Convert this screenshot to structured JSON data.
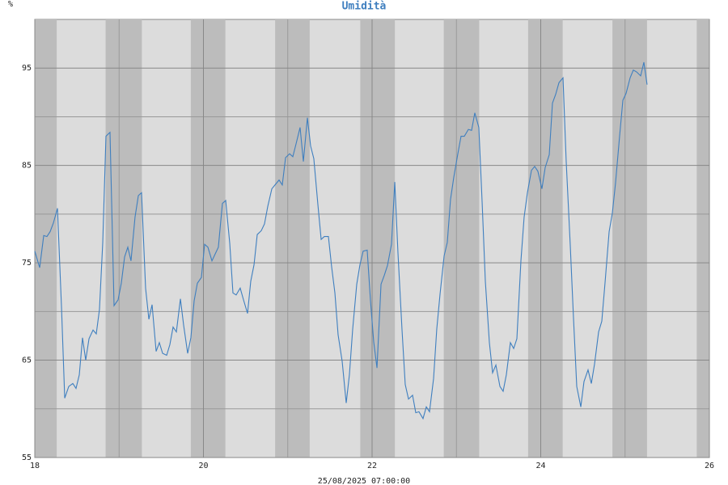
{
  "chart_data": {
    "type": "line",
    "title": "Umidità",
    "y_label": "%",
    "x_label": "25/08/2025 07:00:00",
    "xlim": [
      18,
      26
    ],
    "xticks": [
      18,
      20,
      22,
      24,
      26
    ],
    "xminor": [
      19,
      21,
      23,
      25
    ],
    "ylim": [
      55,
      100
    ],
    "yticks": [
      55,
      65,
      75,
      85,
      95
    ],
    "yminor": [
      60,
      70,
      80,
      90
    ],
    "grid": true,
    "night_bands": [
      [
        18,
        18.26
      ],
      [
        18.84,
        19.27
      ],
      [
        19.85,
        20.26
      ],
      [
        20.85,
        21.26
      ],
      [
        21.86,
        22.27
      ],
      [
        22.85,
        23.27
      ],
      [
        23.85,
        24.26
      ],
      [
        24.85,
        25.26
      ],
      [
        25.85,
        26
      ]
    ],
    "x": [
      18.0,
      18.058,
      18.106,
      18.144,
      18.182,
      18.221,
      18.269,
      18.317,
      18.355,
      18.403,
      18.451,
      18.489,
      18.528,
      18.566,
      18.604,
      18.643,
      18.691,
      18.729,
      18.767,
      18.806,
      18.844,
      18.892,
      18.94,
      18.988,
      19.026,
      19.065,
      19.103,
      19.141,
      19.189,
      19.228,
      19.266,
      19.314,
      19.353,
      19.391,
      19.439,
      19.477,
      19.516,
      19.564,
      19.602,
      19.64,
      19.679,
      19.727,
      19.765,
      19.813,
      19.851,
      19.89,
      19.928,
      19.976,
      20.014,
      20.053,
      20.101,
      20.139,
      20.177,
      20.225,
      20.264,
      20.312,
      20.35,
      20.388,
      20.436,
      20.475,
      20.523,
      20.561,
      20.6,
      20.638,
      20.686,
      20.724,
      20.763,
      20.811,
      20.849,
      20.897,
      20.935,
      20.974,
      21.022,
      21.06,
      21.098,
      21.146,
      21.185,
      21.233,
      21.271,
      21.309,
      21.357,
      21.396,
      21.434,
      21.482,
      21.52,
      21.559,
      21.597,
      21.645,
      21.693,
      21.731,
      21.77,
      21.818,
      21.856,
      21.894,
      21.942,
      21.981,
      22.019,
      22.058,
      22.106,
      22.144,
      22.182,
      22.23,
      22.269,
      22.307,
      22.355,
      22.393,
      22.432,
      22.48,
      22.518,
      22.556,
      22.604,
      22.643,
      22.681,
      22.729,
      22.767,
      22.806,
      22.854,
      22.892,
      22.93,
      22.969,
      23.017,
      23.055,
      23.094,
      23.142,
      23.18,
      23.218,
      23.266,
      23.305,
      23.343,
      23.391,
      23.429,
      23.468,
      23.516,
      23.554,
      23.592,
      23.64,
      23.679,
      23.717,
      23.765,
      23.803,
      23.842,
      23.89,
      23.928,
      23.966,
      24.014,
      24.053,
      24.101,
      24.139,
      24.177,
      24.216,
      24.264,
      24.302,
      24.35,
      24.388,
      24.427,
      24.475,
      24.513,
      24.561,
      24.6,
      24.638,
      24.686,
      24.724,
      24.763,
      24.811,
      24.849,
      24.887,
      24.935,
      24.974,
      25.012,
      25.06,
      25.098,
      25.137,
      25.185,
      25.223,
      25.261
    ],
    "series": [
      {
        "name": "Umidità",
        "color": "#3f7fbf",
        "values": [
          76.2,
          74.5,
          77.8,
          77.7,
          78.2,
          79.1,
          80.6,
          70.4,
          61.1,
          62.3,
          62.6,
          62.1,
          63.5,
          67.3,
          65.0,
          67.2,
          68.1,
          67.7,
          70.2,
          77.1,
          88.0,
          88.4,
          70.6,
          71.2,
          72.9,
          75.6,
          76.6,
          75.2,
          79.7,
          81.9,
          82.2,
          72.4,
          69.2,
          70.7,
          65.9,
          66.8,
          65.7,
          65.5,
          66.6,
          68.4,
          67.9,
          71.3,
          68.6,
          65.7,
          67.3,
          71.1,
          72.9,
          73.5,
          76.9,
          76.6,
          75.2,
          75.9,
          76.6,
          81.1,
          81.4,
          77.0,
          71.9,
          71.7,
          72.4,
          71.2,
          69.8,
          73.1,
          74.8,
          77.9,
          78.3,
          79.0,
          80.8,
          82.6,
          83.0,
          83.5,
          83.0,
          85.8,
          86.2,
          85.9,
          87.2,
          88.9,
          85.4,
          89.9,
          87.0,
          85.7,
          81.0,
          77.4,
          77.7,
          77.7,
          74.6,
          71.9,
          67.6,
          64.9,
          60.6,
          63.5,
          68.2,
          72.8,
          74.8,
          76.2,
          76.3,
          71.1,
          66.9,
          64.2,
          72.8,
          73.7,
          74.7,
          76.9,
          83.3,
          76.0,
          68.1,
          62.5,
          61.0,
          61.4,
          59.6,
          59.7,
          59.0,
          60.2,
          59.7,
          63.1,
          68.2,
          71.8,
          75.7,
          77.1,
          81.5,
          83.8,
          86.2,
          88.0,
          88.0,
          88.7,
          88.6,
          90.4,
          88.9,
          81.2,
          73.1,
          66.8,
          63.7,
          64.5,
          62.3,
          61.8,
          63.5,
          66.8,
          66.2,
          67.2,
          75.2,
          79.7,
          82.2,
          84.5,
          84.9,
          84.4,
          82.6,
          84.8,
          86.1,
          91.4,
          92.3,
          93.5,
          94.0,
          85.4,
          76.8,
          69.4,
          62.3,
          60.2,
          62.8,
          64.0,
          62.6,
          64.6,
          67.9,
          69.0,
          73.0,
          78.2,
          80.1,
          83.2,
          88.0,
          91.7,
          92.4,
          94.0,
          94.8,
          94.6,
          94.2,
          95.6,
          93.3
        ]
      }
    ]
  }
}
